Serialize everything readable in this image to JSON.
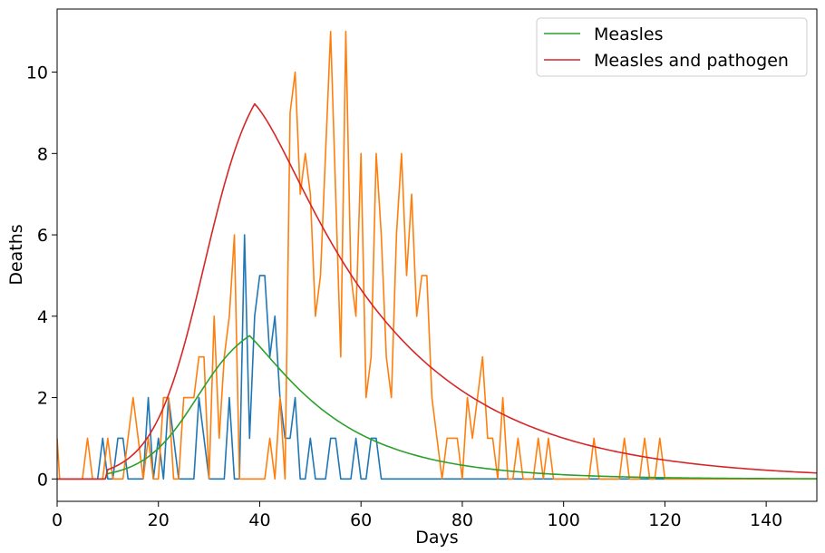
{
  "chart_data": {
    "type": "line",
    "title": "",
    "xlabel": "Days",
    "ylabel": "Deaths",
    "xlim": [
      0,
      150
    ],
    "ylim": [
      -0.55,
      11.55
    ],
    "xticks": [
      0,
      20,
      40,
      60,
      80,
      100,
      120,
      140
    ],
    "yticks": [
      0,
      2,
      4,
      6,
      8,
      10
    ],
    "grid": false,
    "legend": {
      "placement": "top-right",
      "entries": [
        "Measles",
        "Measles and pathogen"
      ]
    },
    "series": [
      {
        "name": "Measles",
        "color": "#2ca02c",
        "kind": "model",
        "peak_x": 38,
        "peak_y": 3.52,
        "onset_x": 10,
        "rise": 5.2,
        "decay": 17
      },
      {
        "name": "Measles and pathogen",
        "color": "#d62728",
        "kind": "model",
        "peak_x": 39,
        "peak_y": 9.22,
        "onset_x": 10,
        "rise": 5.0,
        "decay": 26
      },
      {
        "color": "#1f77b4",
        "kind": "observed",
        "x": [
          0,
          8,
          9,
          10,
          11,
          12,
          13,
          14,
          17,
          18,
          19,
          20,
          21,
          22,
          23,
          24,
          25,
          26,
          27,
          28,
          29,
          30,
          31,
          32,
          33,
          34,
          35,
          36,
          37,
          38,
          39,
          40,
          41,
          42,
          43,
          44,
          45,
          46,
          47,
          48,
          49,
          50,
          51,
          52,
          53,
          54,
          55,
          56,
          57,
          58,
          59,
          60,
          61,
          62,
          63,
          64,
          120
        ],
        "y": [
          0,
          0,
          1,
          0,
          0,
          1,
          1,
          0,
          0,
          2,
          0,
          1,
          0,
          2,
          1,
          0,
          0,
          0,
          0,
          2,
          1,
          0,
          0,
          0,
          0,
          2,
          0,
          0,
          6,
          1,
          4,
          5,
          5,
          3,
          4,
          2,
          1,
          1,
          2,
          0,
          0,
          1,
          0,
          0,
          0,
          1,
          1,
          0,
          0,
          0,
          1,
          0,
          0,
          1,
          1,
          0,
          0
        ]
      },
      {
        "color": "#ff7f0e",
        "kind": "observed",
        "x": [
          0,
          0.5,
          1,
          2,
          3,
          4,
          5,
          6,
          7,
          8,
          9,
          10,
          11,
          12,
          13,
          14,
          15,
          16,
          17,
          18,
          19,
          20,
          21,
          22,
          23,
          24,
          25,
          26,
          27,
          28,
          29,
          30,
          31,
          32,
          33,
          34,
          35,
          36,
          37,
          38,
          39,
          40,
          41,
          42,
          43,
          44,
          45,
          46,
          47,
          48,
          49,
          50,
          51,
          52,
          53,
          54,
          55,
          56,
          57,
          58,
          59,
          60,
          61,
          62,
          63,
          64,
          65,
          66,
          67,
          68,
          69,
          70,
          71,
          72,
          73,
          74,
          75,
          76,
          77,
          78,
          79,
          80,
          81,
          82,
          83,
          84,
          85,
          86,
          87,
          88,
          89,
          90,
          91,
          92,
          93,
          94,
          95,
          96,
          97,
          98,
          99,
          100,
          101,
          102,
          103,
          104,
          105,
          106,
          107,
          108,
          109,
          110,
          111,
          112,
          113,
          114,
          115,
          116,
          117,
          118,
          119,
          120,
          125,
          130,
          135,
          140,
          145,
          150
        ],
        "y": [
          1,
          0,
          0,
          0,
          0,
          0,
          0,
          1,
          0,
          0,
          0,
          1,
          0,
          0,
          0,
          1,
          2,
          1,
          0,
          1,
          0,
          0,
          2,
          2,
          0,
          0,
          2,
          2,
          2,
          3,
          3,
          0,
          4,
          1,
          3,
          4,
          6,
          0,
          0,
          0,
          0,
          0,
          0,
          1,
          0,
          2,
          0,
          9,
          10,
          7,
          8,
          7,
          4,
          5,
          8,
          11,
          7,
          3,
          11,
          5,
          4,
          8,
          2,
          3,
          8,
          6,
          3,
          2,
          6,
          8,
          5,
          7,
          4,
          5,
          5,
          2,
          1,
          0,
          1,
          1,
          1,
          0,
          2,
          1,
          2,
          3,
          1,
          1,
          0,
          2,
          0,
          0,
          1,
          0,
          0,
          0,
          1,
          0,
          1,
          0,
          0,
          0,
          0,
          0,
          0,
          0,
          0,
          1,
          0,
          0,
          0,
          0,
          0,
          1,
          0,
          0,
          0,
          1,
          0,
          0,
          1,
          0,
          0,
          0,
          0,
          0,
          0,
          0
        ]
      }
    ]
  }
}
